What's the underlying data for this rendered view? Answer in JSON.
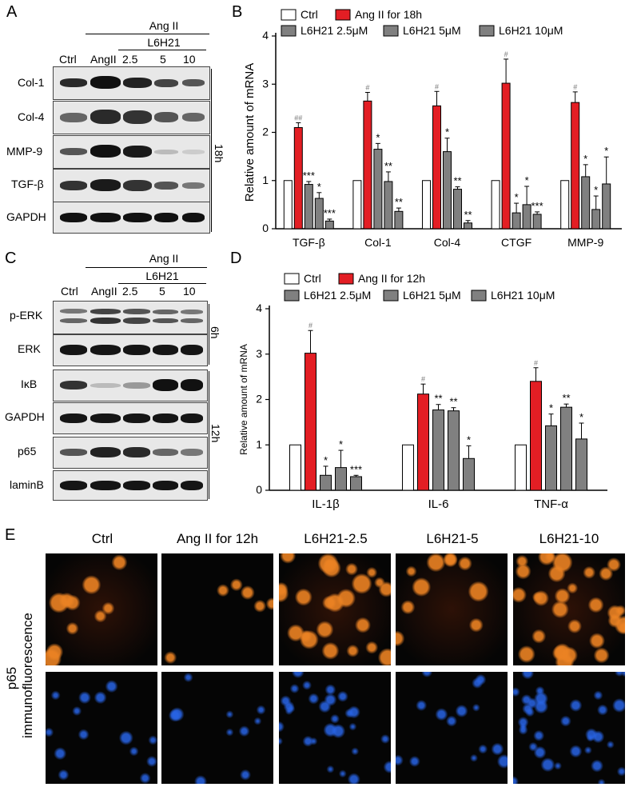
{
  "panels": {
    "A": {
      "label": "A",
      "treatment": "Ang II",
      "drug": "L6H21",
      "lanes": [
        "Ctrl",
        "AngII",
        "2.5",
        "5",
        "10"
      ],
      "rows": [
        "Col-1",
        "Col-4",
        "MMP-9",
        "TGF-β",
        "GAPDH"
      ],
      "time": "18h"
    },
    "B": {
      "label": "B"
    },
    "C": {
      "label": "C",
      "treatment": "Ang II",
      "drug": "L6H21",
      "lanes": [
        "Ctrl",
        "AngII",
        "2.5",
        "5",
        "10"
      ],
      "rows": [
        "p-ERK",
        "ERK",
        "IκB",
        "GAPDH",
        "p65",
        "laminB"
      ],
      "time_top": "6h",
      "time_bottom": "12h"
    },
    "D": {
      "label": "D"
    },
    "E": {
      "label": "E",
      "columns": [
        "Ctrl",
        "Ang II for 12h",
        "L6H21-2.5",
        "L6H21-5",
        "L6H21-10"
      ],
      "row_label_line1": "p65",
      "row_label_line2": "immunofluorescence"
    }
  },
  "colors": {
    "ctrl": "#ffffff",
    "angii": "#e31e24",
    "drug": "#808080",
    "if_red": "#e07a1e",
    "if_blue": "#1b4fd0"
  },
  "chart_data": [
    {
      "type": "bar",
      "panel": "B",
      "ylabel": "Relative amount of mRNA",
      "ylim": [
        0,
        4
      ],
      "yticks": [
        0,
        1,
        2,
        3,
        4
      ],
      "categories": [
        "TGF-β",
        "Col-1",
        "Col-4",
        "CTGF",
        "MMP-9"
      ],
      "series": [
        {
          "name": "Ctrl",
          "values": [
            1,
            1,
            1,
            1,
            1
          ],
          "errors": [
            0,
            0,
            0,
            0,
            0
          ],
          "marks": [
            "",
            "",
            "",
            "",
            ""
          ]
        },
        {
          "name": "Ang II for 18h",
          "values": [
            2.1,
            2.65,
            2.55,
            3.02,
            2.62
          ],
          "errors": [
            0.1,
            0.18,
            0.3,
            0.5,
            0.22
          ],
          "marks": [
            "##",
            "#",
            "#",
            "#",
            "#"
          ]
        },
        {
          "name": "L6H21 2.5μM",
          "values": [
            0.92,
            1.65,
            1.6,
            0.33,
            1.08
          ],
          "errors": [
            0.06,
            0.12,
            0.28,
            0.2,
            0.25
          ],
          "marks": [
            "***",
            "*",
            "*",
            "*",
            "*"
          ]
        },
        {
          "name": "L6H21 5μM",
          "values": [
            0.63,
            0.98,
            0.82,
            0.5,
            0.4
          ],
          "errors": [
            0.12,
            0.2,
            0.05,
            0.38,
            0.28
          ],
          "marks": [
            "*",
            "**",
            "**",
            "*",
            "*"
          ]
        },
        {
          "name": "L6H21 10μM",
          "values": [
            0.16,
            0.36,
            0.12,
            0.3,
            0.93
          ],
          "errors": [
            0.04,
            0.07,
            0.05,
            0.05,
            0.56
          ],
          "marks": [
            "***",
            "**",
            "**",
            "***",
            "*"
          ]
        }
      ],
      "legend": "top"
    },
    {
      "type": "bar",
      "panel": "D",
      "ylabel": "Relative amount of mRNA",
      "ylim": [
        0,
        4
      ],
      "yticks": [
        0,
        1,
        2,
        3,
        4
      ],
      "categories": [
        "IL-1β",
        "IL-6",
        "TNF-α"
      ],
      "series": [
        {
          "name": "Ctrl",
          "values": [
            1,
            1,
            1
          ],
          "errors": [
            0,
            0,
            0
          ],
          "marks": [
            "",
            "",
            ""
          ]
        },
        {
          "name": "Ang II for 12h",
          "values": [
            3.02,
            2.12,
            2.4
          ],
          "errors": [
            0.5,
            0.22,
            0.3
          ],
          "marks": [
            "#",
            "#",
            "#"
          ]
        },
        {
          "name": "L6H21 2.5μM",
          "values": [
            0.33,
            1.77,
            1.42
          ],
          "errors": [
            0.2,
            0.12,
            0.26
          ],
          "marks": [
            "*",
            "**",
            "*"
          ]
        },
        {
          "name": "L6H21 5μM",
          "values": [
            0.5,
            1.75,
            1.83
          ],
          "errors": [
            0.38,
            0.07,
            0.07
          ],
          "marks": [
            "*",
            "**",
            "**"
          ]
        },
        {
          "name": "L6H21 10μM",
          "values": [
            0.3,
            0.7,
            1.13
          ],
          "errors": [
            0.03,
            0.28,
            0.35
          ],
          "marks": [
            "***",
            "*",
            "*"
          ]
        }
      ],
      "legend": "top"
    }
  ]
}
